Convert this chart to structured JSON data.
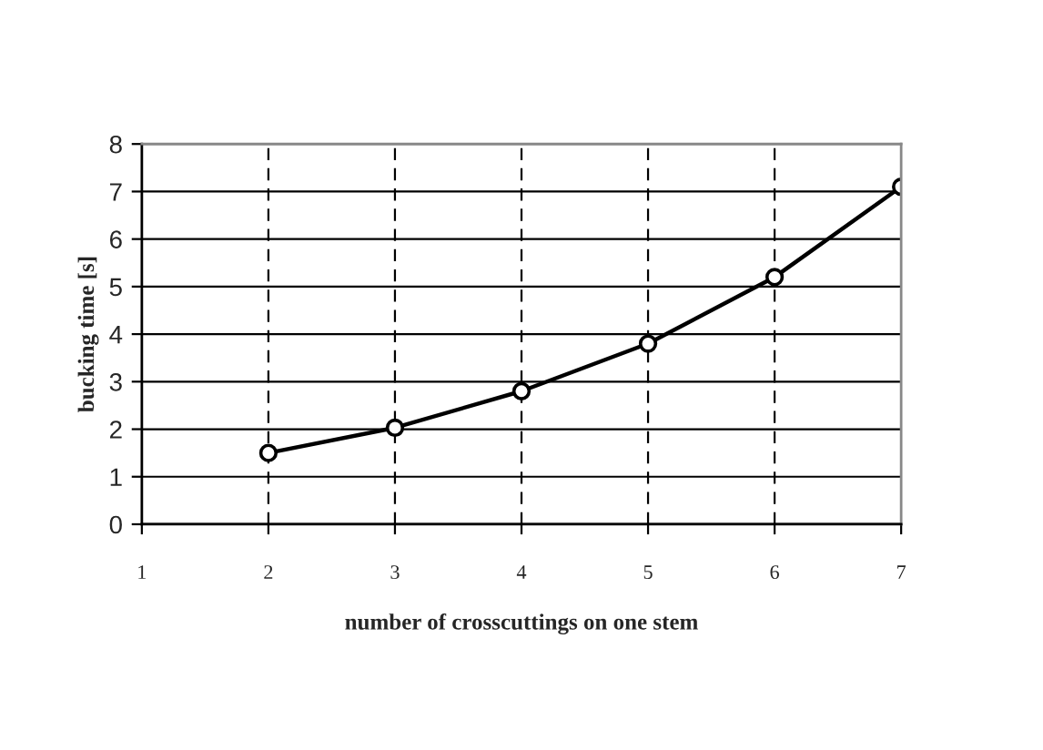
{
  "chart_data": {
    "type": "line",
    "xlabel": "number of crosscuttings on one stem",
    "ylabel": "bucking time [s]",
    "x": [
      2,
      3,
      4,
      5,
      6,
      7
    ],
    "series": [
      {
        "color": "#000000",
        "values": [
          1.5,
          2.03,
          2.8,
          3.8,
          5.2,
          7.1
        ]
      }
    ],
    "xlim": [
      1,
      7
    ],
    "xticks": [
      1,
      2,
      3,
      4,
      5,
      6,
      7
    ],
    "ylim": [
      0,
      8
    ],
    "yticks": [
      0,
      1,
      2,
      3,
      4,
      5,
      6,
      7,
      8
    ],
    "grid": true,
    "marker": "circle",
    "line_style": "solid",
    "legend": false
  }
}
